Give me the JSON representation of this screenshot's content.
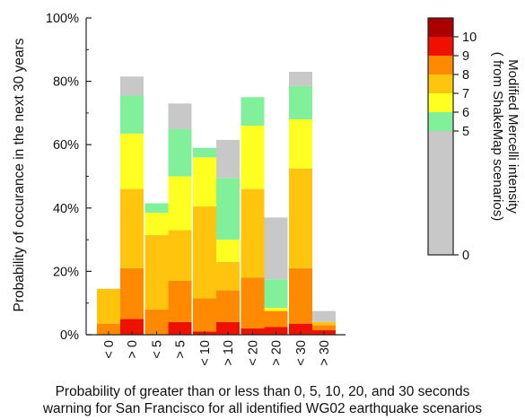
{
  "chart_data": {
    "type": "bar",
    "stacked": true,
    "ylabel": "Probability of occurance in the next 30 years",
    "xlabel_lines": [
      "Probability of greater than or less than 0, 5, 10, 20, and 30 seconds",
      "warning for San Francisco for all identified WG02 earthquake scenarios"
    ],
    "ylim": [
      0,
      100
    ],
    "yticks": [
      "0%",
      "20%",
      "40%",
      "60%",
      "80%",
      "100%"
    ],
    "ytick_values": [
      0,
      20,
      40,
      60,
      80,
      100
    ],
    "categories": [
      "< 0",
      "> 0",
      "< 5",
      "> 5",
      "< 10",
      "> 10",
      "< 20",
      "> 20",
      "< 30",
      "> 30"
    ],
    "groups": [
      [
        0,
        1
      ],
      [
        2,
        3
      ],
      [
        4,
        5
      ],
      [
        6,
        7
      ],
      [
        8,
        9
      ]
    ],
    "colorbar": {
      "title_lines": [
        "Modified Mercelli intensity",
        "( from ShakeMap scenarios)"
      ],
      "levels": [
        {
          "label": "0",
          "value": 0
        },
        {
          "label": "5",
          "value": 5
        },
        {
          "label": "6",
          "value": 6
        },
        {
          "label": "7",
          "value": 7
        },
        {
          "label": "8",
          "value": 8
        },
        {
          "label": "9",
          "value": 9
        },
        {
          "label": "10",
          "value": 10
        }
      ],
      "bands": [
        {
          "from": 0,
          "to": 5,
          "color": "#c8c8c8"
        },
        {
          "from": 5,
          "to": 6,
          "color": "#80f09a"
        },
        {
          "from": 6,
          "to": 7,
          "color": "#ffff22"
        },
        {
          "from": 7,
          "to": 8,
          "color": "#ffc40d"
        },
        {
          "from": 8,
          "to": 9,
          "color": "#ff8a00"
        },
        {
          "from": 9,
          "to": 10,
          "color": "#ee1100"
        },
        {
          "from": 10,
          "to": 10.5,
          "color": "#aa0000"
        }
      ]
    },
    "bars": [
      {
        "category": "< 0",
        "segments": [
          {
            "color": "#ff8a00",
            "value": 3.5
          },
          {
            "color": "#ffc40d",
            "value": 11
          }
        ]
      },
      {
        "category": "> 0",
        "segments": [
          {
            "color": "#ee1100",
            "value": 5
          },
          {
            "color": "#ff8a00",
            "value": 16
          },
          {
            "color": "#ffc40d",
            "value": 25
          },
          {
            "color": "#ffff22",
            "value": 17.5
          },
          {
            "color": "#80f09a",
            "value": 12
          },
          {
            "color": "#c8c8c8",
            "value": 6
          }
        ]
      },
      {
        "category": "< 5",
        "segments": [
          {
            "color": "#ff8a00",
            "value": 8
          },
          {
            "color": "#ffc40d",
            "value": 23.5
          },
          {
            "color": "#ffff22",
            "value": 7
          },
          {
            "color": "#80f09a",
            "value": 3
          }
        ]
      },
      {
        "category": "> 5",
        "segments": [
          {
            "color": "#ee1100",
            "value": 4
          },
          {
            "color": "#ff8a00",
            "value": 13
          },
          {
            "color": "#ffc40d",
            "value": 16
          },
          {
            "color": "#ffff22",
            "value": 17
          },
          {
            "color": "#80f09a",
            "value": 15
          },
          {
            "color": "#c8c8c8",
            "value": 8
          }
        ]
      },
      {
        "category": "< 10",
        "segments": [
          {
            "color": "#ee1100",
            "value": 1
          },
          {
            "color": "#ff8a00",
            "value": 10.5
          },
          {
            "color": "#ffc40d",
            "value": 29
          },
          {
            "color": "#ffff22",
            "value": 15.5
          },
          {
            "color": "#80f09a",
            "value": 3
          }
        ]
      },
      {
        "category": "> 10",
        "segments": [
          {
            "color": "#ee1100",
            "value": 4
          },
          {
            "color": "#ff8a00",
            "value": 10
          },
          {
            "color": "#ffc40d",
            "value": 9
          },
          {
            "color": "#ffff22",
            "value": 7
          },
          {
            "color": "#80f09a",
            "value": 19.5
          },
          {
            "color": "#c8c8c8",
            "value": 12
          }
        ]
      },
      {
        "category": "< 20",
        "segments": [
          {
            "color": "#ee1100",
            "value": 2
          },
          {
            "color": "#ff8a00",
            "value": 16
          },
          {
            "color": "#ffc40d",
            "value": 28
          },
          {
            "color": "#ffff22",
            "value": 20
          },
          {
            "color": "#80f09a",
            "value": 9
          }
        ]
      },
      {
        "category": "> 20",
        "segments": [
          {
            "color": "#ee1100",
            "value": 2.5
          },
          {
            "color": "#ff8a00",
            "value": 5
          },
          {
            "color": "#ffff22",
            "value": 1
          },
          {
            "color": "#80f09a",
            "value": 9
          },
          {
            "color": "#c8c8c8",
            "value": 19.5
          }
        ]
      },
      {
        "category": "< 30",
        "segments": [
          {
            "color": "#ee1100",
            "value": 3.5
          },
          {
            "color": "#ff8a00",
            "value": 17.5
          },
          {
            "color": "#ffc40d",
            "value": 31.5
          },
          {
            "color": "#ffff22",
            "value": 15.5
          },
          {
            "color": "#80f09a",
            "value": 10.5
          },
          {
            "color": "#c8c8c8",
            "value": 4.5
          }
        ]
      },
      {
        "category": "> 30",
        "segments": [
          {
            "color": "#ee1100",
            "value": 1.5
          },
          {
            "color": "#ff8a00",
            "value": 1.5
          },
          {
            "color": "#ffc40d",
            "value": 1
          },
          {
            "color": "#c8c8c8",
            "value": 3.5
          }
        ]
      }
    ]
  }
}
